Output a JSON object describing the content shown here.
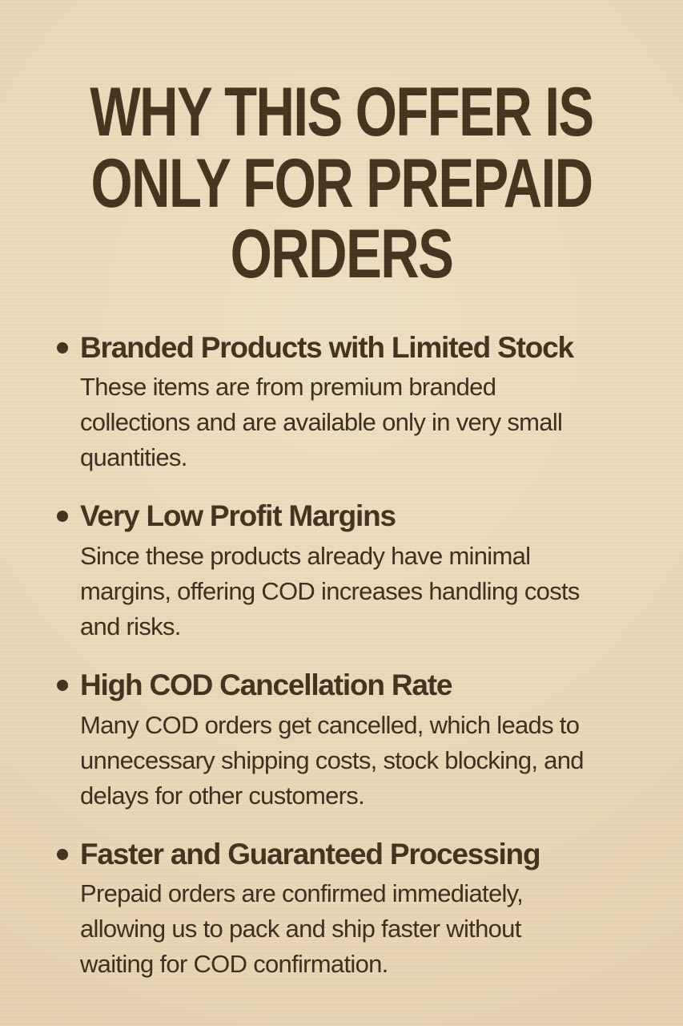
{
  "poster": {
    "title_lines": [
      "WHY THIS OFFER IS",
      "ONLY FOR PREPAID",
      "ORDERS"
    ],
    "bullets": [
      {
        "heading": "Branded Products with Limited Stock",
        "body": "These items are from premium branded collections and are available only in very small quantities.",
        "body_lines": [
          "These items are from premium branded",
          "collections and are available only in very small",
          "quantities."
        ]
      },
      {
        "heading": "Very Low Profit Margins",
        "body": "Since these products already have minimal margins, offering COD increases handling costs and risks.",
        "body_lines": [
          "Since these products already have minimal",
          "margins, offering COD increases handling costs",
          "and risks."
        ]
      },
      {
        "heading": "High COD Cancellation Rate",
        "body": "Many COD orders get cancelled, which leads to unnecessary shipping costs, stock blocking, and delays for other customers.",
        "body_lines": [
          "Many COD orders get cancelled, which leads to",
          "unnecessary shipping costs, stock blocking, and",
          "delays for other customers."
        ]
      },
      {
        "heading": "Faster and Guaranteed Processing",
        "body": "Prepaid orders are confirmed immediately, allowing us to pack and ship faster without waiting for COD confirmation.",
        "body_lines": [
          "Prepaid orders are confirmed immediately,",
          "allowing us to pack and ship faster without",
          "waiting for COD confirmation."
        ]
      }
    ],
    "colors": {
      "background_center": "#eee0c2",
      "background_edge": "#e2cead",
      "title_text": "#46331f",
      "heading_text": "#443220",
      "body_text": "#3d2e1e",
      "bullet_dot": "#443221"
    }
  }
}
